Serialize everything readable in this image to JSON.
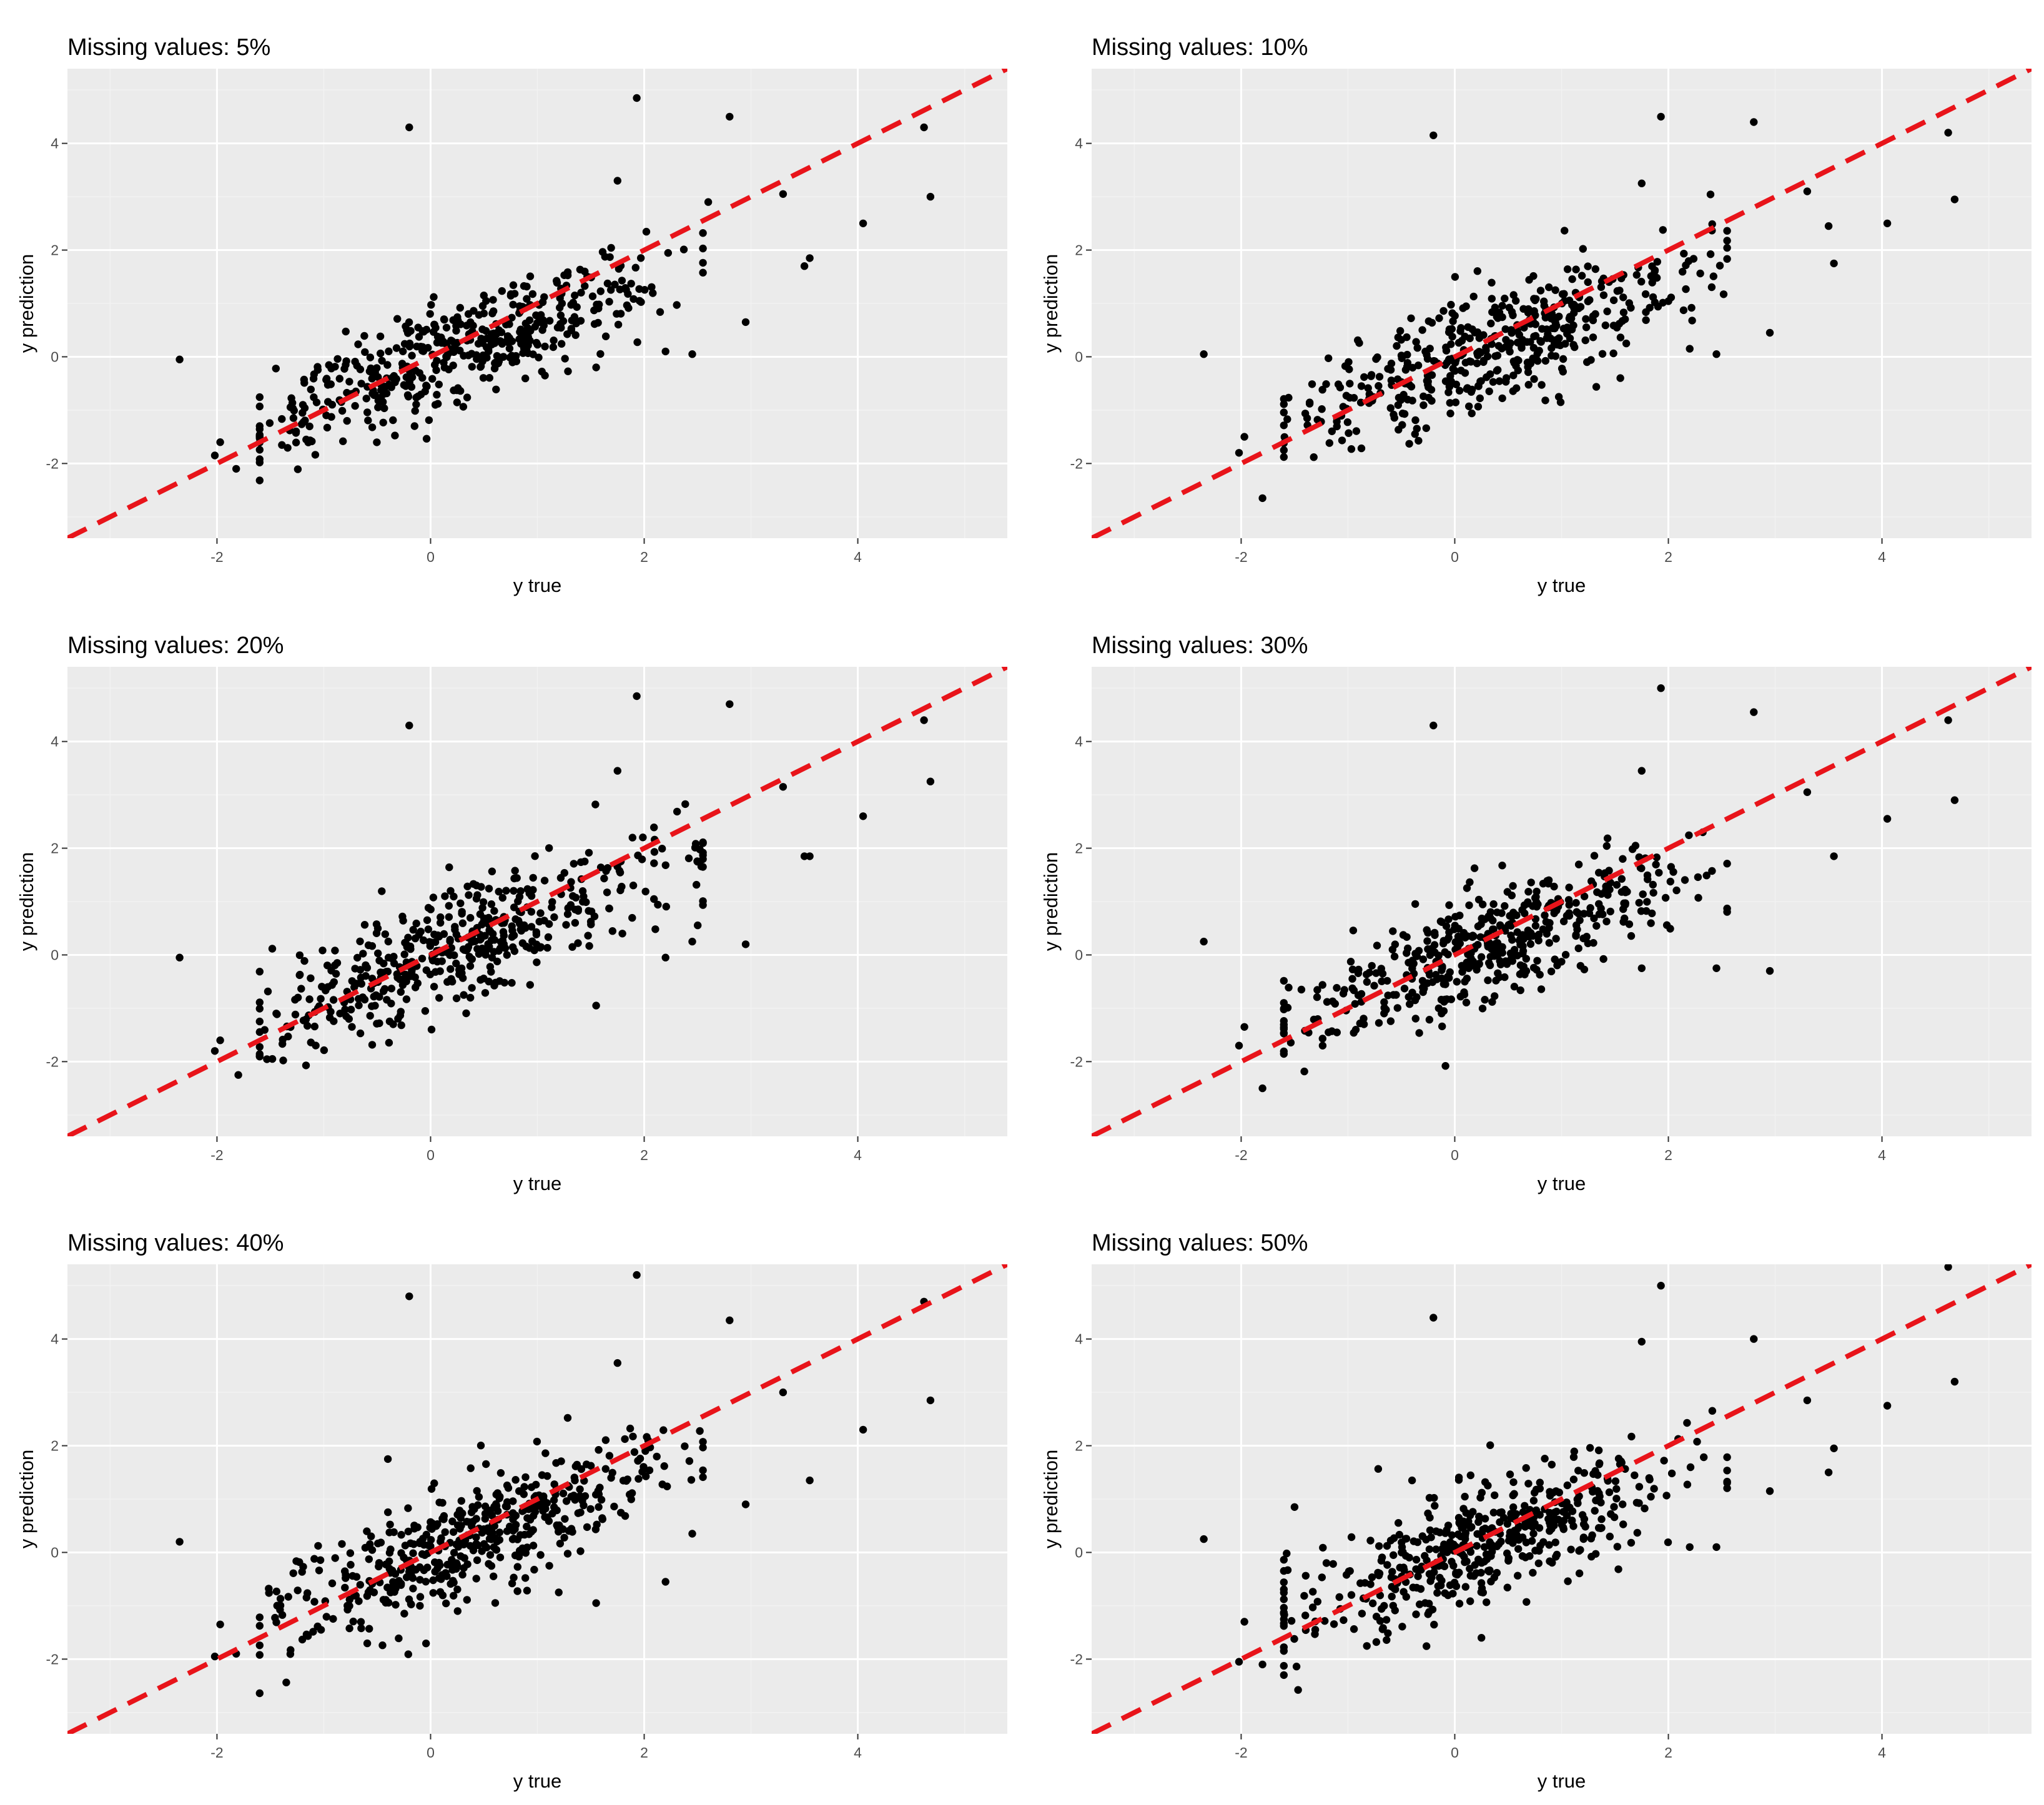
{
  "figure": {
    "dot_color": "#000000",
    "ref_line_color": "#e8141a",
    "panel_background": "#ebebeb"
  },
  "chart_data": [
    {
      "type": "scatter",
      "title": "Missing values: 5%",
      "xlabel": "y true",
      "ylabel": "y prediction",
      "xlim": [
        -3.4,
        5.4
      ],
      "ylim": [
        -3.4,
        5.4
      ],
      "x_ticks": [
        -2,
        0,
        2,
        4
      ],
      "y_ticks": [
        -2,
        0,
        2,
        4
      ],
      "x_tick_labels": [
        "-2",
        "0",
        "2",
        "4"
      ],
      "y_tick_labels": [
        "-2",
        "0",
        "2",
        "4"
      ],
      "reference_line": {
        "slope": 1,
        "intercept": 0,
        "style": "dashed"
      },
      "outliers": [
        [
          -0.2,
          4.3
        ],
        [
          1.93,
          4.85
        ],
        [
          2.8,
          4.5
        ],
        [
          4.62,
          4.3
        ],
        [
          4.68,
          3.0
        ],
        [
          3.3,
          3.05
        ],
        [
          4.05,
          2.5
        ],
        [
          3.55,
          1.85
        ],
        [
          2.6,
          2.9
        ],
        [
          2.95,
          0.65
        ],
        [
          2.45,
          0.05
        ],
        [
          2.2,
          0.1
        ],
        [
          -1.82,
          -2.1
        ],
        [
          -2.35,
          -0.05
        ],
        [
          -1.97,
          -1.6
        ],
        [
          -2.02,
          -1.85
        ],
        [
          1.75,
          3.3
        ],
        [
          3.5,
          1.7
        ],
        [
          -0.15,
          -1.3
        ],
        [
          1.55,
          -0.2
        ],
        [
          -1.2,
          -1.05
        ]
      ],
      "cluster": {
        "seed": 101,
        "n": 470,
        "x_mean": 0.35,
        "x_sd": 0.95,
        "slope": 0.72,
        "noise_sd": 0.5
      }
    },
    {
      "type": "scatter",
      "title": "Missing values: 10%",
      "xlabel": "y true",
      "ylabel": "y prediction",
      "xlim": [
        -3.4,
        5.4
      ],
      "ylim": [
        -3.4,
        5.4
      ],
      "x_ticks": [
        -2,
        0,
        2,
        4
      ],
      "y_ticks": [
        -2,
        0,
        2,
        4
      ],
      "x_tick_labels": [
        "-2",
        "0",
        "2",
        "4"
      ],
      "y_tick_labels": [
        "-2",
        "0",
        "2",
        "4"
      ],
      "reference_line": {
        "slope": 1,
        "intercept": 0,
        "style": "dashed"
      },
      "outliers": [
        [
          -0.2,
          4.15
        ],
        [
          1.93,
          4.5
        ],
        [
          2.8,
          4.4
        ],
        [
          4.62,
          4.2
        ],
        [
          4.68,
          2.95
        ],
        [
          3.3,
          3.1
        ],
        [
          4.05,
          2.5
        ],
        [
          3.55,
          1.75
        ],
        [
          2.95,
          0.45
        ],
        [
          2.45,
          0.05
        ],
        [
          2.2,
          0.15
        ],
        [
          -1.97,
          -1.5
        ],
        [
          -2.02,
          -1.8
        ],
        [
          -1.8,
          -2.65
        ],
        [
          -2.35,
          0.05
        ],
        [
          1.75,
          3.25
        ],
        [
          3.5,
          2.45
        ],
        [
          1.55,
          -0.4
        ]
      ],
      "cluster": {
        "seed": 202,
        "n": 470,
        "x_mean": 0.35,
        "x_sd": 0.95,
        "slope": 0.72,
        "noise_sd": 0.5
      }
    },
    {
      "type": "scatter",
      "title": "Missing values: 20%",
      "xlabel": "y true",
      "ylabel": "y prediction",
      "xlim": [
        -3.4,
        5.4
      ],
      "ylim": [
        -3.4,
        5.4
      ],
      "x_ticks": [
        -2,
        0,
        2,
        4
      ],
      "y_ticks": [
        -2,
        0,
        2,
        4
      ],
      "x_tick_labels": [
        "-2",
        "0",
        "2",
        "4"
      ],
      "y_tick_labels": [
        "-2",
        "0",
        "2",
        "4"
      ],
      "reference_line": {
        "slope": 1,
        "intercept": 0,
        "style": "dashed"
      },
      "outliers": [
        [
          -0.2,
          4.3
        ],
        [
          1.93,
          4.85
        ],
        [
          2.8,
          4.7
        ],
        [
          4.62,
          4.4
        ],
        [
          4.68,
          3.25
        ],
        [
          3.3,
          3.15
        ],
        [
          4.05,
          2.6
        ],
        [
          3.55,
          1.85
        ],
        [
          3.5,
          1.85
        ],
        [
          2.95,
          0.2
        ],
        [
          2.2,
          -0.05
        ],
        [
          -1.8,
          -2.25
        ],
        [
          -1.97,
          -1.6
        ],
        [
          -2.02,
          -1.8
        ],
        [
          -2.35,
          -0.05
        ],
        [
          1.75,
          3.45
        ],
        [
          1.55,
          -0.95
        ],
        [
          -0.35,
          -1.3
        ],
        [
          -0.05,
          -1.05
        ],
        [
          2.45,
          0.25
        ]
      ],
      "cluster": {
        "seed": 303,
        "n": 470,
        "x_mean": 0.35,
        "x_sd": 0.95,
        "slope": 0.72,
        "noise_sd": 0.52
      }
    },
    {
      "type": "scatter",
      "title": "Missing values: 30%",
      "xlabel": "y true",
      "ylabel": "y prediction",
      "xlim": [
        -3.4,
        5.4
      ],
      "ylim": [
        -3.4,
        5.4
      ],
      "x_ticks": [
        -2,
        0,
        2,
        4
      ],
      "y_ticks": [
        -2,
        0,
        2,
        4
      ],
      "x_tick_labels": [
        "-2",
        "0",
        "2",
        "4"
      ],
      "y_tick_labels": [
        "-2",
        "0",
        "2",
        "4"
      ],
      "reference_line": {
        "slope": 1,
        "intercept": 0,
        "style": "dashed"
      },
      "outliers": [
        [
          -0.2,
          4.3
        ],
        [
          1.93,
          5.0
        ],
        [
          2.8,
          4.55
        ],
        [
          4.62,
          4.4
        ],
        [
          4.68,
          2.9
        ],
        [
          3.3,
          3.05
        ],
        [
          4.05,
          2.55
        ],
        [
          3.55,
          1.85
        ],
        [
          2.95,
          -0.3
        ],
        [
          2.45,
          -0.25
        ],
        [
          -1.97,
          -1.35
        ],
        [
          -2.02,
          -1.7
        ],
        [
          -1.8,
          -2.5
        ],
        [
          -2.35,
          0.25
        ],
        [
          1.75,
          3.45
        ],
        [
          1.75,
          -0.25
        ],
        [
          -0.15,
          -1.0
        ],
        [
          -0.85,
          -1.3
        ]
      ],
      "cluster": {
        "seed": 404,
        "n": 470,
        "x_mean": 0.35,
        "x_sd": 0.95,
        "slope": 0.72,
        "noise_sd": 0.52
      }
    },
    {
      "type": "scatter",
      "title": "Missing values: 40%",
      "xlabel": "y true",
      "ylabel": "y prediction",
      "xlim": [
        -3.4,
        5.4
      ],
      "ylim": [
        -3.4,
        5.4
      ],
      "x_ticks": [
        -2,
        0,
        2,
        4
      ],
      "y_ticks": [
        -2,
        0,
        2,
        4
      ],
      "x_tick_labels": [
        "-2",
        "0",
        "2",
        "4"
      ],
      "y_tick_labels": [
        "-2",
        "0",
        "2",
        "4"
      ],
      "reference_line": {
        "slope": 1,
        "intercept": 0,
        "style": "dashed"
      },
      "outliers": [
        [
          -0.2,
          4.8
        ],
        [
          1.93,
          5.2
        ],
        [
          2.8,
          4.35
        ],
        [
          4.62,
          4.7
        ],
        [
          4.68,
          2.85
        ],
        [
          3.3,
          3.0
        ],
        [
          4.05,
          2.3
        ],
        [
          3.55,
          1.35
        ],
        [
          2.95,
          0.9
        ],
        [
          2.2,
          -0.55
        ],
        [
          2.45,
          0.35
        ],
        [
          -2.02,
          -1.95
        ],
        [
          -1.97,
          -1.35
        ],
        [
          -1.82,
          -1.9
        ],
        [
          -2.35,
          0.2
        ],
        [
          1.75,
          3.55
        ],
        [
          1.55,
          -0.95
        ],
        [
          -0.4,
          1.75
        ],
        [
          1.2,
          -0.75
        ],
        [
          -0.1,
          -1.0
        ]
      ],
      "cluster": {
        "seed": 505,
        "n": 480,
        "x_mean": 0.35,
        "x_sd": 0.95,
        "slope": 0.72,
        "noise_sd": 0.55
      }
    },
    {
      "type": "scatter",
      "title": "Missing values: 50%",
      "xlabel": "y true",
      "ylabel": "y prediction",
      "xlim": [
        -3.4,
        5.4
      ],
      "ylim": [
        -3.4,
        5.4
      ],
      "x_ticks": [
        -2,
        0,
        2,
        4
      ],
      "y_ticks": [
        -2,
        0,
        2,
        4
      ],
      "x_tick_labels": [
        "-2",
        "0",
        "2",
        "4"
      ],
      "y_tick_labels": [
        "-2",
        "0",
        "2",
        "4"
      ],
      "reference_line": {
        "slope": 1,
        "intercept": 0,
        "style": "dashed"
      },
      "outliers": [
        [
          -0.2,
          4.4
        ],
        [
          1.93,
          5.0
        ],
        [
          2.8,
          4.0
        ],
        [
          4.62,
          5.35
        ],
        [
          4.68,
          3.2
        ],
        [
          3.3,
          2.85
        ],
        [
          4.05,
          2.75
        ],
        [
          3.55,
          1.95
        ],
        [
          3.5,
          1.5
        ],
        [
          2.95,
          1.15
        ],
        [
          2.45,
          0.1
        ],
        [
          2.2,
          0.1
        ],
        [
          -2.02,
          -2.05
        ],
        [
          -1.97,
          -1.3
        ],
        [
          -1.8,
          -2.1
        ],
        [
          -2.35,
          0.25
        ],
        [
          1.75,
          3.95
        ],
        [
          0.25,
          -1.6
        ],
        [
          -0.4,
          1.35
        ],
        [
          -1.5,
          0.85
        ]
      ],
      "cluster": {
        "seed": 606,
        "n": 480,
        "x_mean": 0.35,
        "x_sd": 0.95,
        "slope": 0.72,
        "noise_sd": 0.55
      }
    }
  ]
}
